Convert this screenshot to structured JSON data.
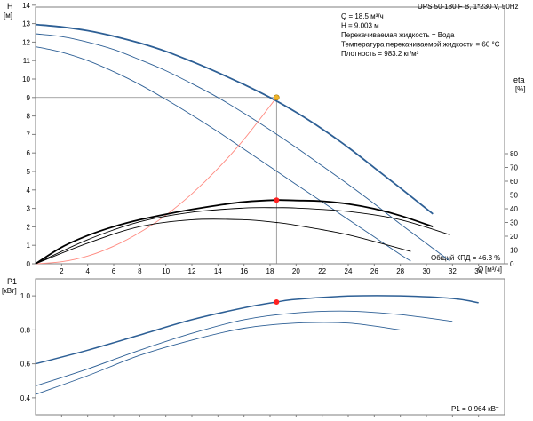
{
  "chart_data": [
    {
      "type": "line",
      "title": "UPS 50-180 F B, 1*230 V, 50Hz",
      "ylabel": "H",
      "yunit": "[м]",
      "ylabel_right": "eta",
      "yunit_right": "[%]",
      "xlabel": "Q",
      "xunit": "[м³/ч]",
      "xlim": [
        0,
        36
      ],
      "ylim": [
        0,
        15
      ],
      "ylim_right": [
        0,
        100
      ],
      "xticks": [
        2,
        4,
        6,
        8,
        10,
        12,
        14,
        16,
        18,
        20,
        22,
        24,
        26,
        28,
        30,
        32,
        34
      ],
      "yticks": [
        0,
        1,
        2,
        3,
        4,
        5,
        6,
        7,
        8,
        9,
        10,
        11,
        12,
        13,
        14
      ],
      "yticks_right": [
        0,
        10,
        20,
        30,
        40,
        50,
        60,
        70,
        80
      ],
      "info_lines": [
        "Q = 18.5 м³/ч",
        "H = 9.003 м",
        "Перекачиваемая жидкость = Вода",
        "Температура перекачиваемой жидкости = 60 °C",
        "Плотность = 983.2 кг/м³"
      ],
      "efficiency_label": "Общий КПД = 46.3 %",
      "series": [
        {
          "role": "head-speed-1",
          "color": "#2d5f95",
          "x": [
            0,
            2,
            4,
            6,
            8,
            10,
            12,
            14,
            16,
            18,
            20,
            22,
            24,
            26,
            28,
            30.5
          ],
          "y": [
            12.95,
            12.82,
            12.62,
            12.32,
            11.95,
            11.5,
            10.95,
            10.35,
            9.7,
            9.0,
            8.2,
            7.3,
            6.3,
            5.2,
            4.1,
            2.7
          ]
        },
        {
          "role": "head-speed-2",
          "color": "#2d5f95",
          "x": [
            0,
            2,
            4,
            6,
            8,
            10,
            12,
            14,
            16,
            18,
            20,
            22,
            24,
            26,
            28,
            30,
            31.8
          ],
          "y": [
            12.45,
            12.3,
            12.0,
            11.6,
            11.05,
            10.45,
            9.75,
            9.0,
            8.15,
            7.25,
            6.3,
            5.3,
            4.3,
            3.25,
            2.15,
            1.1,
            0.15
          ]
        },
        {
          "role": "head-speed-3",
          "color": "#2d5f95",
          "x": [
            0,
            2,
            4,
            6,
            8,
            10,
            12,
            14,
            16,
            18,
            20,
            22,
            24,
            26,
            28,
            28.8
          ],
          "y": [
            11.75,
            11.45,
            11.0,
            10.4,
            9.7,
            8.9,
            8.05,
            7.15,
            6.2,
            5.25,
            4.3,
            3.35,
            2.4,
            1.45,
            0.5,
            0.15
          ]
        },
        {
          "role": "system-curve",
          "color": "#ff8a80",
          "x": [
            0,
            2,
            4,
            6,
            8,
            10,
            12,
            14,
            16,
            18.5
          ],
          "y": [
            0,
            0.11,
            0.42,
            0.95,
            1.69,
            2.63,
            3.79,
            5.16,
            6.74,
            9.0
          ]
        },
        {
          "role": "eta-speed-1",
          "color": "#000000",
          "x": [
            0,
            2,
            4,
            6,
            8,
            10,
            12,
            14,
            16,
            18.5,
            20,
            22,
            24,
            26,
            28,
            30.5
          ],
          "y": [
            0,
            12,
            20.5,
            27,
            32,
            36,
            39.5,
            42.5,
            45,
            46.3,
            46,
            45.5,
            43.5,
            40,
            35,
            27
          ]
        },
        {
          "role": "eta-speed-2",
          "color": "#000000",
          "x": [
            0,
            4,
            8,
            12,
            16,
            18.5,
            20,
            24,
            28,
            31.8
          ],
          "y": [
            0,
            17.5,
            30.5,
            37.5,
            40.5,
            40.8,
            40.5,
            38,
            32,
            21
          ]
        },
        {
          "role": "eta-speed-3",
          "color": "#000000",
          "x": [
            0,
            4,
            8,
            12,
            16,
            18.5,
            20,
            24,
            28.8
          ],
          "y": [
            0,
            15,
            27,
            32,
            32,
            30,
            28,
            21,
            9
          ]
        }
      ],
      "duty_point": {
        "x": 18.5,
        "y": 9.003,
        "color": "#f0b429"
      },
      "eta_point": {
        "x": 18.5,
        "y": 46.3,
        "color": "#ff2020"
      },
      "grid": false
    },
    {
      "type": "line",
      "ylabel": "P1",
      "yunit": "[кВт]",
      "xlim": [
        0,
        36
      ],
      "ylim": [
        0.3,
        1.1
      ],
      "yticks": [
        0.4,
        0.6,
        0.8,
        1.0
      ],
      "power_label": "P1 = 0.964 кВт",
      "series": [
        {
          "role": "power-speed-1",
          "color": "#2d5f95",
          "x": [
            0,
            4,
            8,
            12,
            16,
            18.5,
            20,
            24,
            28,
            32,
            34
          ],
          "y": [
            0.6,
            0.68,
            0.77,
            0.86,
            0.93,
            0.964,
            0.98,
            0.999,
            1.0,
            0.985,
            0.96
          ]
        },
        {
          "role": "power-speed-2",
          "color": "#2d5f95",
          "x": [
            0,
            4,
            8,
            12,
            16,
            20,
            24,
            28,
            32
          ],
          "y": [
            0.47,
            0.57,
            0.68,
            0.78,
            0.86,
            0.9,
            0.91,
            0.89,
            0.85
          ]
        },
        {
          "role": "power-speed-3",
          "color": "#2d5f95",
          "x": [
            0,
            4,
            8,
            12,
            16,
            20,
            24,
            28
          ],
          "y": [
            0.42,
            0.53,
            0.65,
            0.74,
            0.81,
            0.84,
            0.84,
            0.8
          ]
        }
      ],
      "duty_point": {
        "x": 18.5,
        "y": 0.964,
        "color": "#ff2020"
      },
      "grid": false
    }
  ]
}
